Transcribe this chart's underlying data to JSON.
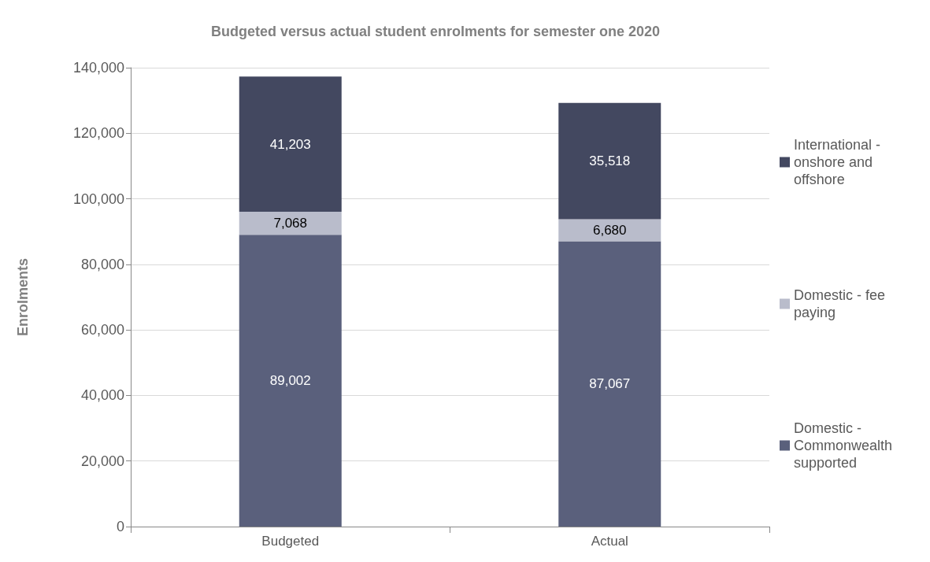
{
  "chart_data": {
    "type": "bar",
    "title": "Budgeted versus actual student enrolments for semester one 2020",
    "ylabel": "Enrolments",
    "categories": [
      "Budgeted",
      "Actual"
    ],
    "stacked": true,
    "series": [
      {
        "name": "Domestic - Commonwealth supported",
        "color": "#5a607c",
        "values": [
          89002,
          87067
        ],
        "value_labels": [
          "89,002",
          "87,067"
        ]
      },
      {
        "name": "Domestic - fee paying",
        "color": "#b9bccb",
        "values": [
          7068,
          6680
        ],
        "value_labels": [
          "7,068",
          "6,680"
        ]
      },
      {
        "name": "International - onshore and offshore",
        "color": "#434860",
        "values": [
          41203,
          35518
        ],
        "value_labels": [
          "41,203",
          "35,518"
        ]
      }
    ],
    "ylim": [
      0,
      140000
    ],
    "yticks": [
      0,
      {
        "value": 20000,
        "label": "20,000"
      },
      {
        "value": 40000,
        "label": "40,000"
      },
      {
        "value": 60000,
        "label": "60,000"
      },
      {
        "value": 80000,
        "label": "80,000"
      },
      {
        "value": 100000,
        "label": "100,000"
      },
      {
        "value": 120000,
        "label": "120,000"
      },
      {
        "value": 140000,
        "label": "140,000"
      }
    ],
    "grid": "y",
    "legend": "right"
  }
}
